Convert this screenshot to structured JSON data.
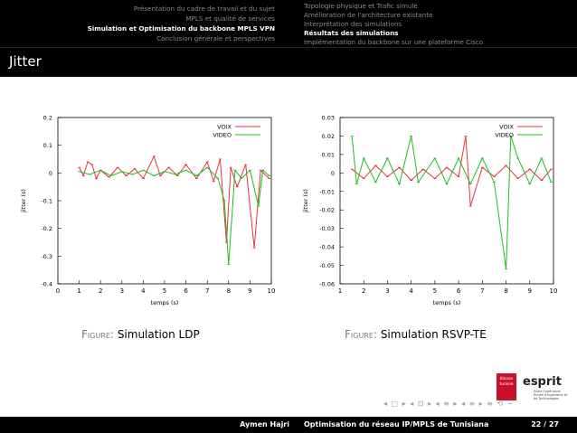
{
  "header": {
    "sections": [
      {
        "label": "Présentation du cadre de travail et du sujet",
        "active": false
      },
      {
        "label": "MPLS et qualité de services",
        "active": false
      },
      {
        "label": "Simulation et Optimisation du backbone MPLS VPN",
        "active": true
      },
      {
        "label": "Conclusion générale et perspectives",
        "active": false
      }
    ],
    "subsections": [
      {
        "label": "Topologie physique et Trafic simulé",
        "active": false
      },
      {
        "label": "Amélioration de l'architecture existante",
        "active": false
      },
      {
        "label": "Interprétation des simulations",
        "active": false
      },
      {
        "label": "Résultats des simulations",
        "active": true
      },
      {
        "label": "Implémentation du backbone sur une plateforme Cisco",
        "active": false
      }
    ]
  },
  "slide_title": "Jitter",
  "captions": {
    "left_prefix": "Figure:",
    "left_text": "Simulation LDP",
    "right_prefix": "Figure:",
    "right_text": "Simulation RSVP-TE"
  },
  "logo": {
    "box_line1": "blason",
    "box_line2": "tunisie",
    "brand": "esprit",
    "tagline": "Ecole Supérieure Privée d'Ingénierie et de Technologies"
  },
  "footer": {
    "author": "Aymen Hajri",
    "title": "Optimisation du réseau IP/MPLS de Tunisiana",
    "page": "22 / 27"
  },
  "nav_symbols": "◂ □ ▸ ◂ ⊡ ▸ ◂ ≡ ▸ ◂ ≡ ▸ ≡ ⟲ ∽",
  "colors": {
    "voix": "#e8323c",
    "video": "#1fbf1f",
    "bar": "#000000",
    "inactive": "#8a8a8a"
  },
  "chart_data": [
    {
      "type": "line",
      "xlabel": "temps (s)",
      "ylabel": "jitter (s)",
      "xlim": [
        0,
        10
      ],
      "ylim": [
        -0.4,
        0.2
      ],
      "xticks": [
        0,
        1,
        2,
        3,
        4,
        5,
        6,
        7,
        8,
        9,
        10
      ],
      "yticks": [
        0.2,
        0.1,
        0,
        -0.1,
        -0.2,
        -0.3,
        -0.4
      ],
      "legend": "top-right",
      "series": [
        {
          "name": "VOIX",
          "color": "#e8323c",
          "points": [
            [
              1,
              0.02
            ],
            [
              1.2,
              -0.01
            ],
            [
              1.4,
              0.04
            ],
            [
              1.6,
              0.03
            ],
            [
              1.8,
              -0.02
            ],
            [
              2,
              0.01
            ],
            [
              2.4,
              -0.015
            ],
            [
              2.8,
              0.02
            ],
            [
              3.2,
              -0.01
            ],
            [
              3.6,
              0.015
            ],
            [
              4,
              -0.02
            ],
            [
              4.5,
              0.06
            ],
            [
              4.8,
              -0.01
            ],
            [
              5.2,
              0.02
            ],
            [
              5.6,
              -0.01
            ],
            [
              6,
              0.03
            ],
            [
              6.5,
              -0.02
            ],
            [
              7,
              0.04
            ],
            [
              7.3,
              -0.03
            ],
            [
              7.6,
              0.05
            ],
            [
              7.9,
              -0.25
            ],
            [
              8.1,
              0.02
            ],
            [
              8.4,
              -0.05
            ],
            [
              8.8,
              0.03
            ],
            [
              9.2,
              -0.27
            ],
            [
              9.5,
              0.01
            ],
            [
              9.9,
              -0.02
            ]
          ]
        },
        {
          "name": "VIDEO",
          "color": "#1fbf1f",
          "points": [
            [
              1,
              0.005
            ],
            [
              1.5,
              -0.005
            ],
            [
              2,
              0.01
            ],
            [
              2.5,
              -0.01
            ],
            [
              3,
              0.005
            ],
            [
              3.5,
              -0.005
            ],
            [
              4,
              0.01
            ],
            [
              4.5,
              -0.01
            ],
            [
              5,
              0.005
            ],
            [
              5.5,
              -0.005
            ],
            [
              6,
              0.01
            ],
            [
              6.5,
              -0.01
            ],
            [
              7,
              0.02
            ],
            [
              7.5,
              -0.02
            ],
            [
              7.8,
              -0.1
            ],
            [
              8,
              -0.33
            ],
            [
              8.3,
              0.01
            ],
            [
              8.6,
              -0.02
            ],
            [
              9,
              0.01
            ],
            [
              9.4,
              -0.12
            ],
            [
              9.6,
              0.01
            ],
            [
              9.9,
              -0.01
            ]
          ]
        }
      ]
    },
    {
      "type": "line",
      "xlabel": "temps (s)",
      "ylabel": "jitter (s)",
      "xlim": [
        1,
        10
      ],
      "ylim": [
        -0.06,
        0.03
      ],
      "xticks": [
        1,
        2,
        3,
        4,
        5,
        6,
        7,
        8,
        9,
        10
      ],
      "yticks": [
        0.03,
        0.02,
        0.01,
        0,
        -0.01,
        -0.02,
        -0.03,
        -0.04,
        -0.05,
        -0.06
      ],
      "legend": "top-right",
      "series": [
        {
          "name": "VOIX",
          "color": "#e8323c",
          "points": [
            [
              1.5,
              0.002
            ],
            [
              2,
              -0.003
            ],
            [
              2.5,
              0.004
            ],
            [
              3,
              -0.002
            ],
            [
              3.5,
              0.003
            ],
            [
              4,
              -0.004
            ],
            [
              4.5,
              0.002
            ],
            [
              5,
              -0.003
            ],
            [
              5.5,
              0.003
            ],
            [
              6,
              -0.002
            ],
            [
              6.3,
              0.02
            ],
            [
              6.5,
              -0.018
            ],
            [
              7,
              0.003
            ],
            [
              7.5,
              -0.002
            ],
            [
              8,
              0.004
            ],
            [
              8.5,
              -0.003
            ],
            [
              9,
              0.002
            ],
            [
              9.5,
              -0.004
            ],
            [
              9.9,
              0.002
            ]
          ]
        },
        {
          "name": "VIDEO",
          "color": "#1fbf1f",
          "points": [
            [
              1.5,
              0.02
            ],
            [
              1.7,
              -0.006
            ],
            [
              2,
              0.008
            ],
            [
              2.5,
              -0.005
            ],
            [
              3,
              0.008
            ],
            [
              3.5,
              -0.006
            ],
            [
              4,
              0.02
            ],
            [
              4.3,
              -0.005
            ],
            [
              5,
              0.008
            ],
            [
              5.5,
              -0.006
            ],
            [
              6,
              0.008
            ],
            [
              6.5,
              -0.006
            ],
            [
              7,
              0.008
            ],
            [
              7.5,
              -0.005
            ],
            [
              8,
              -0.052
            ],
            [
              8.2,
              0.02
            ],
            [
              8.5,
              0.008
            ],
            [
              9,
              -0.006
            ],
            [
              9.5,
              0.008
            ],
            [
              9.9,
              -0.005
            ]
          ]
        }
      ]
    }
  ]
}
